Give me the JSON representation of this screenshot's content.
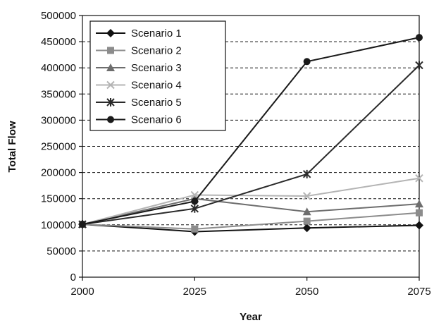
{
  "chart_data": {
    "type": "line",
    "title": "",
    "xlabel": "Year",
    "ylabel": "Total Flow",
    "x": [
      2000,
      2025,
      2050,
      2075
    ],
    "xlim": [
      2000,
      2075
    ],
    "ylim": [
      0,
      500000
    ],
    "yticks": [
      0,
      50000,
      100000,
      150000,
      200000,
      250000,
      300000,
      350000,
      400000,
      450000,
      500000
    ],
    "ytick_labels": [
      "0",
      "50000",
      "100000",
      "150000",
      "200000",
      "250000",
      "300000",
      "350000",
      "400000",
      "450000",
      "500000"
    ],
    "xtick_labels": [
      "2000",
      "2025",
      "2050",
      "2075"
    ],
    "grid": "horizontal-dashed",
    "legend_position": "top-left",
    "series": [
      {
        "name": "Scenario 1",
        "marker": "diamond",
        "color": "#111111",
        "values": [
          101000,
          87000,
          94000,
          99000
        ]
      },
      {
        "name": "Scenario 2",
        "marker": "square",
        "color": "#8c8c8c",
        "values": [
          101000,
          92000,
          107000,
          123000
        ]
      },
      {
        "name": "Scenario 3",
        "marker": "triangle",
        "color": "#6e6e6e",
        "values": [
          101000,
          150000,
          125000,
          140000
        ]
      },
      {
        "name": "Scenario 4",
        "marker": "x",
        "color": "#b4b4b4",
        "values": [
          101000,
          157000,
          155000,
          189000
        ]
      },
      {
        "name": "Scenario 5",
        "marker": "star",
        "color": "#2a2a2a",
        "values": [
          101000,
          131000,
          197000,
          405000
        ]
      },
      {
        "name": "Scenario 6",
        "marker": "circle",
        "color": "#1a1a1a",
        "values": [
          101000,
          145000,
          412000,
          458000
        ]
      }
    ]
  }
}
